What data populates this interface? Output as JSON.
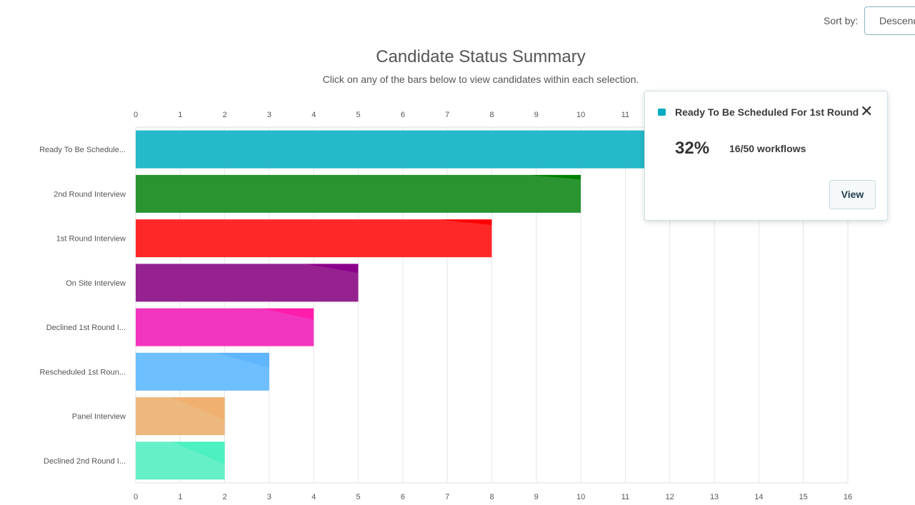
{
  "sort": {
    "label": "Sort by:",
    "value": "Descending"
  },
  "chart_data": {
    "type": "bar",
    "orientation": "horizontal",
    "title": "Candidate Status Summary",
    "subtitle": "Click on any of the bars below to view candidates within each selection.",
    "categories": [
      "Ready To Be Schedule...",
      "2nd Round Interview",
      "1st Round Interview",
      "On Site Interview",
      "Declined 1st Round I...",
      "Rescheduled 1st Roun...",
      "Panel Interview",
      "Declined 2nd Round I..."
    ],
    "values": [
      16,
      10,
      8,
      5,
      4,
      3,
      2,
      2
    ],
    "colors": [
      "#00acc1",
      "#008000",
      "#ff0000",
      "#8b008b",
      "#ff1dab",
      "#60b5ff",
      "#f0b070",
      "#4df0c0"
    ],
    "light_colors": [
      "#25b9c9",
      "#2a9430",
      "#ff2828",
      "#952290",
      "#f235bf",
      "#6ebfff",
      "#edb87e",
      "#66f0c8"
    ],
    "xlim": [
      0,
      16
    ],
    "xticks": [
      "0",
      "1",
      "2",
      "3",
      "4",
      "5",
      "6",
      "7",
      "8",
      "9",
      "10",
      "11",
      "12",
      "13",
      "14",
      "15",
      "16"
    ],
    "grid": true
  },
  "popup": {
    "title": "Ready To Be Scheduled For 1st Round",
    "color": "#00acc1",
    "percent": "32%",
    "count": "16/50 workflows",
    "view_label": "View",
    "close_icon": "close-icon"
  }
}
